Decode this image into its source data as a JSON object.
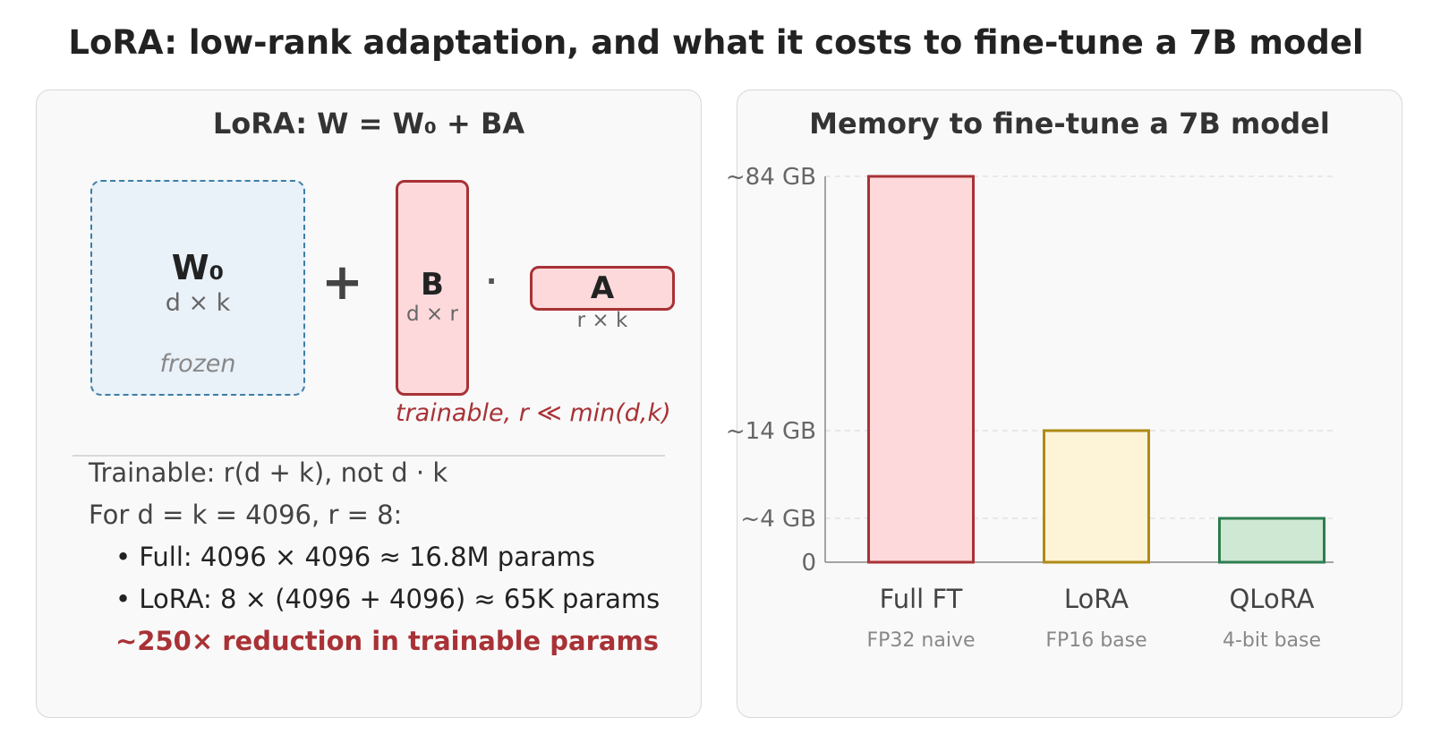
{
  "title": "LoRA: low-rank adaptation, and what it costs to fine-tune a 7B model",
  "left_panel": {
    "title": "LoRA: W = W₀ + BA",
    "w0": {
      "label": "W₀",
      "dims": "d × k",
      "note": "frozen"
    },
    "plus": "+",
    "b": {
      "label": "B",
      "dims": "d × r"
    },
    "dot": "·",
    "a": {
      "label": "A",
      "dims": "r × k"
    },
    "trainable_note": "trainable, r ≪ min(d,k)",
    "lines": [
      "Trainable: r(d + k), not d · k",
      "For d = k = 4096, r = 8:"
    ],
    "bullets": [
      "• Full: 4096 × 4096 ≈ 16.8M params",
      "• LoRA: 8 × (4096 + 4096) ≈ 65K params"
    ],
    "reduction": "~250× reduction in trainable params"
  },
  "right_panel": {
    "title": "Memory to fine-tune a 7B model"
  },
  "chart_data": {
    "type": "bar",
    "categories": [
      "Full FT",
      "LoRA",
      "QLoRA"
    ],
    "category_sublabels": [
      "FP32 naive",
      "FP16 base",
      "4-bit base"
    ],
    "values": [
      84,
      14,
      4
    ],
    "unit": "GB",
    "y_ticks": [
      {
        "value": 0,
        "label": "0"
      },
      {
        "value": 4,
        "label": "~4 GB"
      },
      {
        "value": 14,
        "label": "~14 GB"
      },
      {
        "value": 84,
        "label": "~84 GB"
      }
    ],
    "grid": true,
    "colors": {
      "fill": [
        "#fdd9db",
        "#fdf3d6",
        "#cfe8d3"
      ],
      "stroke": [
        "#a83236",
        "#b08a14",
        "#2e7d4f"
      ]
    }
  }
}
